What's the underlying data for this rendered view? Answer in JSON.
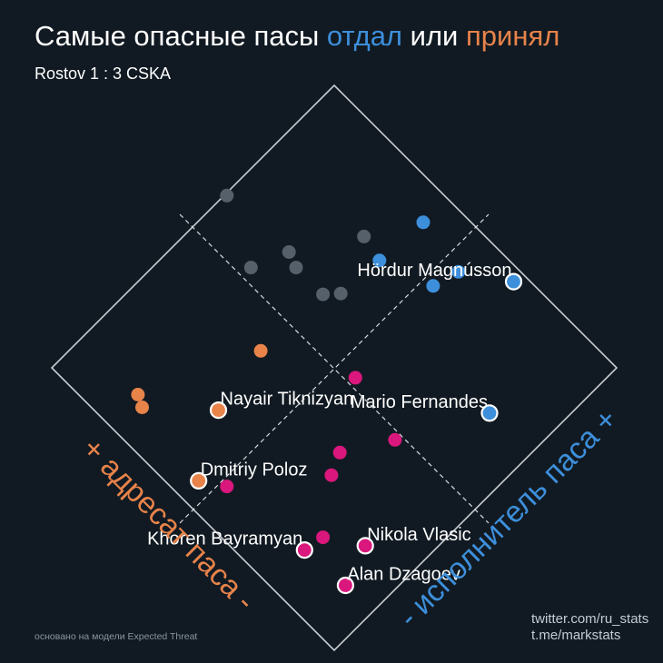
{
  "header": {
    "title_part1": "Самые опасные пасы ",
    "title_given": "отдал",
    "title_mid": " или ",
    "title_received": "принял",
    "subtitle": "Rostov 1 : 3 CSKA"
  },
  "colors": {
    "background": "#111a22",
    "given": "#3d8fdb",
    "received": "#e8834a",
    "both": "#d9177c",
    "neutral": "#55606a",
    "frame": "#c9cdd2"
  },
  "chart_data": {
    "type": "scatter",
    "title": "Самые опасные пасы отдал или принял",
    "subtitle": "Rostov 1 : 3 CSKA",
    "axes": {
      "passer": {
        "label": "- исполнитель паса +",
        "direction": "increases toward bottom-right"
      },
      "receiver": {
        "label": "+ адресат паса -",
        "direction": "increases toward bottom-left"
      }
    },
    "ranges": {
      "passer": [
        0,
        1
      ],
      "receiver": [
        0,
        1
      ]
    },
    "grid": "center dashed lines",
    "categories": [
      "both",
      "given",
      "received",
      "neutral"
    ],
    "points": [
      {
        "label": "Alan Dzagoev",
        "passer": 0.905,
        "receiver": 0.865,
        "category": "both",
        "highlight": true
      },
      {
        "label": "Khoren Bayramyan",
        "passer": 0.77,
        "receiver": 0.875,
        "category": "both",
        "highlight": true
      },
      {
        "label": "Nikola Vlasic",
        "passer": 0.87,
        "receiver": 0.76,
        "category": "both",
        "highlight": true
      },
      {
        "label": "",
        "passer": 0.78,
        "receiver": 0.82,
        "category": "both",
        "highlight": false
      },
      {
        "label": "",
        "passer": 0.52,
        "receiver": 0.9,
        "category": "both",
        "highlight": false
      },
      {
        "label": "",
        "passer": 0.685,
        "receiver": 0.695,
        "category": "both",
        "highlight": false
      },
      {
        "label": "",
        "passer": 0.66,
        "receiver": 0.64,
        "category": "both",
        "highlight": false
      },
      {
        "label": "",
        "passer": 0.735,
        "receiver": 0.52,
        "category": "both",
        "highlight": false
      },
      {
        "label": "",
        "passer": 0.555,
        "receiver": 0.48,
        "category": "both",
        "highlight": false
      },
      {
        "label": "Mario Fernandes",
        "passer": 0.855,
        "receiver": 0.305,
        "category": "given",
        "highlight": true
      },
      {
        "label": "Hördur Magnússon",
        "passer": 0.665,
        "receiver": 0.03,
        "category": "given",
        "highlight": true
      },
      {
        "label": "",
        "passer": 0.53,
        "receiver": 0.18,
        "category": "given",
        "highlight": false
      },
      {
        "label": "",
        "passer": 0.55,
        "receiver": 0.11,
        "category": "given",
        "highlight": false
      },
      {
        "label": "",
        "passer": 0.39,
        "receiver": 0.23,
        "category": "given",
        "highlight": false
      },
      {
        "label": "",
        "passer": 0.4,
        "receiver": 0.085,
        "category": "given",
        "highlight": false
      },
      {
        "label": "Dmitriy Poloz",
        "passer": 0.46,
        "receiver": 0.94,
        "category": "received",
        "highlight": true
      },
      {
        "label": "Nayair Tiknizyan",
        "passer": 0.37,
        "receiver": 0.78,
        "category": "received",
        "highlight": true
      },
      {
        "label": "",
        "passer": 0.34,
        "receiver": 0.6,
        "category": "received",
        "highlight": false
      },
      {
        "label": "",
        "passer": 0.2,
        "receiver": 0.895,
        "category": "received",
        "highlight": false
      },
      {
        "label": "",
        "passer": 0.23,
        "receiver": 0.91,
        "category": "received",
        "highlight": false
      },
      {
        "label": "",
        "passer": 0.35,
        "receiver": 0.39,
        "category": "neutral",
        "highlight": false
      },
      {
        "label": "",
        "passer": 0.38,
        "receiver": 0.357,
        "category": "neutral",
        "highlight": false
      },
      {
        "label": "",
        "passer": 0.175,
        "receiver": 0.47,
        "category": "neutral",
        "highlight": false
      },
      {
        "label": "",
        "passer": 0.255,
        "receiver": 0.39,
        "category": "neutral",
        "highlight": false
      },
      {
        "label": "",
        "passer": 0.32,
        "receiver": 0.215,
        "category": "neutral",
        "highlight": false
      },
      {
        "label": "",
        "passer": 0.215,
        "receiver": 0.375,
        "category": "neutral",
        "highlight": false
      },
      {
        "label": "",
        "passer": 0.005,
        "receiver": 0.385,
        "category": "neutral",
        "highlight": false
      }
    ]
  },
  "footer": {
    "note": "основано на модели Expected Threat",
    "credit1": "twitter.com/ru_stats",
    "credit2": "t.me/markstats"
  }
}
